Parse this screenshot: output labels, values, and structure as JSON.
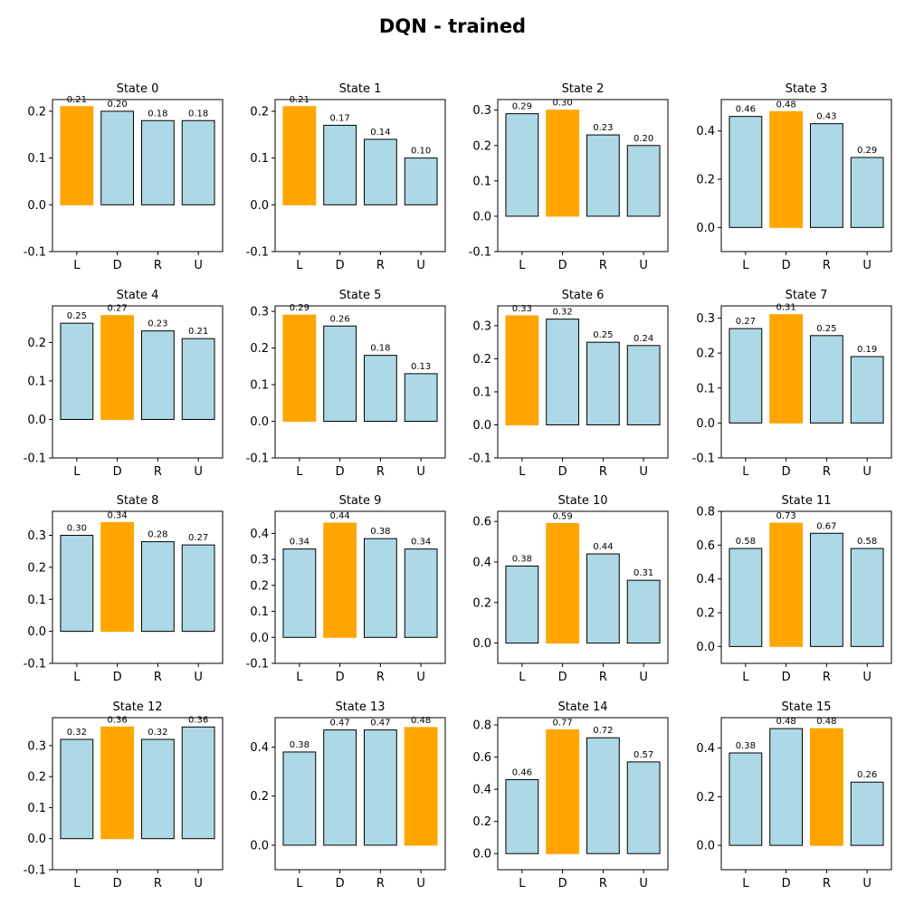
{
  "title": "DQN - trained",
  "colors": {
    "best": "#ffa500",
    "other": "#add8e6",
    "edge": "#000000"
  },
  "chart_data": [
    {
      "type": "bar",
      "title": "State 0",
      "categories": [
        "L",
        "D",
        "R",
        "U"
      ],
      "values": [
        0.21,
        0.2,
        0.18,
        0.18
      ],
      "best": 0,
      "ylim": [
        -0.1,
        0.225
      ],
      "yticks": [
        -0.1,
        0.0,
        0.1,
        0.2
      ]
    },
    {
      "type": "bar",
      "title": "State 1",
      "categories": [
        "L",
        "D",
        "R",
        "U"
      ],
      "values": [
        0.21,
        0.17,
        0.14,
        0.1
      ],
      "best": 0,
      "ylim": [
        -0.1,
        0.225
      ],
      "yticks": [
        -0.1,
        0.0,
        0.1,
        0.2
      ]
    },
    {
      "type": "bar",
      "title": "State 2",
      "categories": [
        "L",
        "D",
        "R",
        "U"
      ],
      "values": [
        0.29,
        0.3,
        0.23,
        0.2
      ],
      "best": 1,
      "ylim": [
        -0.1,
        0.33
      ],
      "yticks": [
        -0.1,
        0.0,
        0.1,
        0.2,
        0.3
      ]
    },
    {
      "type": "bar",
      "title": "State 3",
      "categories": [
        "L",
        "D",
        "R",
        "U"
      ],
      "values": [
        0.46,
        0.48,
        0.43,
        0.29
      ],
      "best": 1,
      "ylim": [
        -0.1,
        0.53
      ],
      "yticks": [
        0.0,
        0.2,
        0.4
      ]
    },
    {
      "type": "bar",
      "title": "State 4",
      "categories": [
        "L",
        "D",
        "R",
        "U"
      ],
      "values": [
        0.25,
        0.27,
        0.23,
        0.21
      ],
      "best": 1,
      "ylim": [
        -0.1,
        0.295
      ],
      "yticks": [
        -0.1,
        0.0,
        0.1,
        0.2
      ]
    },
    {
      "type": "bar",
      "title": "State 5",
      "categories": [
        "L",
        "D",
        "R",
        "U"
      ],
      "values": [
        0.29,
        0.26,
        0.18,
        0.13
      ],
      "best": 0,
      "ylim": [
        -0.1,
        0.315
      ],
      "yticks": [
        -0.1,
        0.0,
        0.1,
        0.2,
        0.3
      ]
    },
    {
      "type": "bar",
      "title": "State 6",
      "categories": [
        "L",
        "D",
        "R",
        "U"
      ],
      "values": [
        0.33,
        0.32,
        0.25,
        0.24
      ],
      "best": 0,
      "ylim": [
        -0.1,
        0.36
      ],
      "yticks": [
        -0.1,
        0.0,
        0.1,
        0.2,
        0.3
      ]
    },
    {
      "type": "bar",
      "title": "State 7",
      "categories": [
        "L",
        "D",
        "R",
        "U"
      ],
      "values": [
        0.27,
        0.31,
        0.25,
        0.19
      ],
      "best": 1,
      "ylim": [
        -0.1,
        0.335
      ],
      "yticks": [
        -0.1,
        0.0,
        0.1,
        0.2,
        0.3
      ]
    },
    {
      "type": "bar",
      "title": "State 8",
      "categories": [
        "L",
        "D",
        "R",
        "U"
      ],
      "values": [
        0.3,
        0.34,
        0.28,
        0.27
      ],
      "best": 1,
      "ylim": [
        -0.1,
        0.375
      ],
      "yticks": [
        -0.1,
        0.0,
        0.1,
        0.2,
        0.3
      ]
    },
    {
      "type": "bar",
      "title": "State 9",
      "categories": [
        "L",
        "D",
        "R",
        "U"
      ],
      "values": [
        0.34,
        0.44,
        0.38,
        0.34
      ],
      "best": 1,
      "ylim": [
        -0.1,
        0.485
      ],
      "yticks": [
        -0.1,
        0.0,
        0.1,
        0.2,
        0.3,
        0.4
      ]
    },
    {
      "type": "bar",
      "title": "State 10",
      "categories": [
        "L",
        "D",
        "R",
        "U"
      ],
      "values": [
        0.38,
        0.59,
        0.44,
        0.31
      ],
      "best": 1,
      "ylim": [
        -0.1,
        0.65
      ],
      "yticks": [
        0.0,
        0.2,
        0.4,
        0.6
      ]
    },
    {
      "type": "bar",
      "title": "State 11",
      "categories": [
        "L",
        "D",
        "R",
        "U"
      ],
      "values": [
        0.58,
        0.73,
        0.67,
        0.58
      ],
      "best": 1,
      "ylim": [
        -0.1,
        0.8
      ],
      "yticks": [
        0.0,
        0.2,
        0.4,
        0.6,
        0.8
      ]
    },
    {
      "type": "bar",
      "title": "State 12",
      "categories": [
        "L",
        "D",
        "R",
        "U"
      ],
      "values": [
        0.32,
        0.36,
        0.32,
        0.36
      ],
      "best": 1,
      "ylim": [
        -0.1,
        0.39
      ],
      "yticks": [
        -0.1,
        0.0,
        0.1,
        0.2,
        0.3
      ]
    },
    {
      "type": "bar",
      "title": "State 13",
      "categories": [
        "L",
        "D",
        "R",
        "U"
      ],
      "values": [
        0.38,
        0.47,
        0.47,
        0.48
      ],
      "best": 3,
      "ylim": [
        -0.1,
        0.52
      ],
      "yticks": [
        0.0,
        0.2,
        0.4
      ]
    },
    {
      "type": "bar",
      "title": "State 14",
      "categories": [
        "L",
        "D",
        "R",
        "U"
      ],
      "values": [
        0.46,
        0.77,
        0.72,
        0.57
      ],
      "best": 1,
      "ylim": [
        -0.1,
        0.845
      ],
      "yticks": [
        0.0,
        0.2,
        0.4,
        0.6,
        0.8
      ]
    },
    {
      "type": "bar",
      "title": "State 15",
      "categories": [
        "L",
        "D",
        "R",
        "U"
      ],
      "values": [
        0.38,
        0.48,
        0.48,
        0.26
      ],
      "best": 2,
      "ylim": [
        -0.1,
        0.525
      ],
      "yticks": [
        0.0,
        0.2,
        0.4
      ]
    }
  ]
}
